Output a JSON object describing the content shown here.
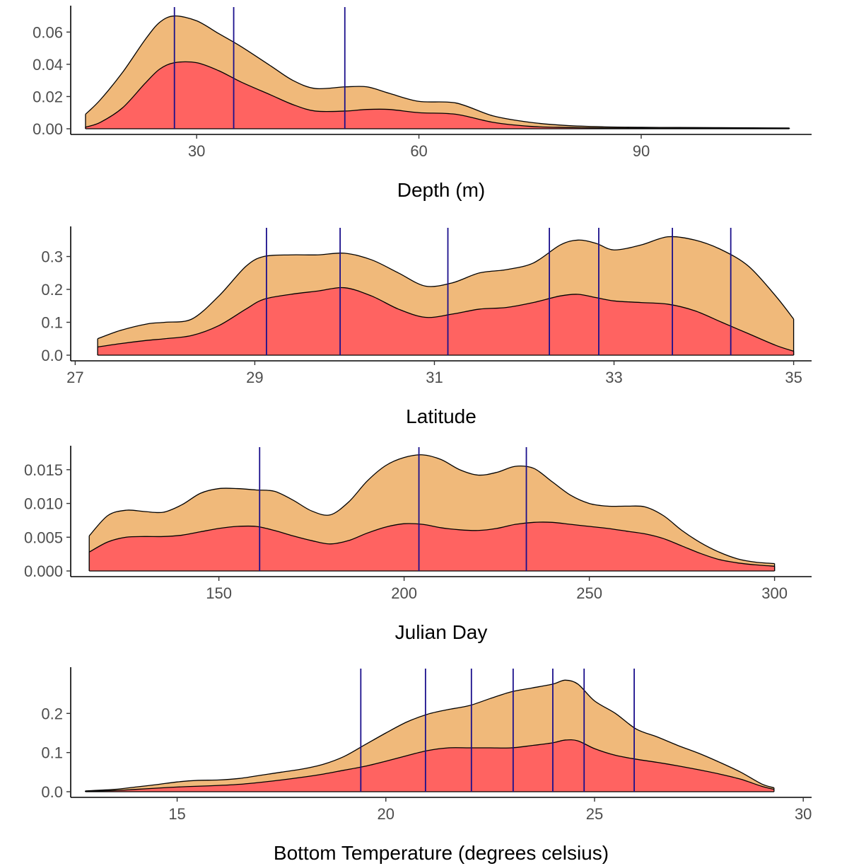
{
  "colors": {
    "outer_fill": "#F0B97A",
    "inner_fill": "#FF6361",
    "line": "#000000",
    "vline": "#1A0F8C"
  },
  "chart_data": [
    {
      "type": "area",
      "xlabel": "Depth (m)",
      "ylabel": "",
      "xlim": [
        13,
        113
      ],
      "ylim": [
        0,
        0.072
      ],
      "x_ticks": [
        30,
        60,
        90
      ],
      "x_tick_labels": [
        "30",
        "60",
        "90"
      ],
      "y_ticks": [
        0.0,
        0.02,
        0.04,
        0.06
      ],
      "y_tick_labels": [
        "0.00",
        "0.02",
        "0.04",
        "0.06"
      ],
      "series": [
        {
          "x": [
            15,
            17,
            20,
            23,
            25,
            27,
            30,
            33,
            36,
            40,
            43,
            46,
            50,
            53,
            56,
            60,
            65,
            70,
            75,
            80,
            85,
            90,
            95,
            100,
            105,
            110
          ],
          "values": [
            0.009,
            0.018,
            0.035,
            0.055,
            0.066,
            0.07,
            0.067,
            0.059,
            0.051,
            0.039,
            0.03,
            0.025,
            0.026,
            0.026,
            0.022,
            0.017,
            0.016,
            0.008,
            0.004,
            0.002,
            0.0012,
            0.0009,
            0.0008,
            0.0007,
            0.0006,
            0.0005
          ]
        },
        {
          "x": [
            15,
            17,
            20,
            23,
            25,
            27,
            30,
            33,
            36,
            40,
            43,
            46,
            50,
            53,
            56,
            60,
            65,
            70,
            75,
            80,
            85,
            90,
            95,
            100,
            105,
            110
          ],
          "values": [
            0.001,
            0.004,
            0.013,
            0.028,
            0.037,
            0.041,
            0.041,
            0.036,
            0.029,
            0.021,
            0.015,
            0.011,
            0.011,
            0.012,
            0.012,
            0.01,
            0.009,
            0.004,
            0.0015,
            0.0008,
            0.0005,
            0.0004,
            0.0003,
            0.0003,
            0.0002,
            0.0002
          ]
        }
      ],
      "vlines": [
        27,
        35,
        50
      ]
    },
    {
      "type": "area",
      "xlabel": "Latitude",
      "ylabel": "",
      "xlim": [
        26.95,
        35.2
      ],
      "ylim": [
        0,
        0.37
      ],
      "x_ticks": [
        27,
        29,
        31,
        33,
        35
      ],
      "x_tick_labels": [
        "27",
        "29",
        "31",
        "33",
        "35"
      ],
      "y_ticks": [
        0.0,
        0.1,
        0.2,
        0.3
      ],
      "y_tick_labels": [
        "0.0",
        "0.1",
        "0.2",
        "0.3"
      ],
      "series": [
        {
          "x": [
            27.25,
            27.5,
            27.8,
            28.0,
            28.3,
            28.6,
            28.9,
            29.1,
            29.4,
            29.7,
            30.0,
            30.3,
            30.6,
            30.9,
            31.2,
            31.5,
            31.8,
            32.1,
            32.4,
            32.6,
            32.8,
            33.0,
            33.3,
            33.6,
            33.9,
            34.2,
            34.5,
            34.8,
            35.0
          ],
          "values": [
            0.05,
            0.075,
            0.095,
            0.1,
            0.11,
            0.18,
            0.27,
            0.3,
            0.305,
            0.305,
            0.31,
            0.29,
            0.25,
            0.21,
            0.22,
            0.25,
            0.26,
            0.28,
            0.335,
            0.35,
            0.34,
            0.32,
            0.335,
            0.36,
            0.35,
            0.32,
            0.27,
            0.18,
            0.11
          ]
        },
        {
          "x": [
            27.25,
            27.5,
            27.8,
            28.0,
            28.3,
            28.6,
            28.9,
            29.1,
            29.4,
            29.7,
            30.0,
            30.3,
            30.6,
            30.9,
            31.2,
            31.5,
            31.8,
            32.1,
            32.4,
            32.6,
            32.8,
            33.0,
            33.3,
            33.6,
            33.9,
            34.2,
            34.5,
            34.8,
            35.0
          ],
          "values": [
            0.025,
            0.035,
            0.045,
            0.05,
            0.06,
            0.09,
            0.14,
            0.17,
            0.185,
            0.195,
            0.205,
            0.18,
            0.14,
            0.115,
            0.125,
            0.14,
            0.145,
            0.16,
            0.18,
            0.185,
            0.175,
            0.165,
            0.16,
            0.155,
            0.135,
            0.1,
            0.065,
            0.03,
            0.012
          ]
        }
      ],
      "vlines": [
        29.13,
        29.95,
        31.15,
        32.28,
        32.83,
        33.65,
        34.3
      ]
    },
    {
      "type": "area",
      "xlabel": "Julian Day",
      "ylabel": "",
      "xlim": [
        110,
        310
      ],
      "ylim": [
        0,
        0.0175
      ],
      "x_ticks": [
        150,
        200,
        250,
        300
      ],
      "x_tick_labels": [
        "150",
        "200",
        "250",
        "300"
      ],
      "y_ticks": [
        0.0,
        0.005,
        0.01,
        0.015
      ],
      "y_tick_labels": [
        "0.000",
        "0.005",
        "0.010",
        "0.015"
      ],
      "series": [
        {
          "x": [
            115,
            120,
            125,
            130,
            135,
            140,
            145,
            150,
            155,
            160,
            165,
            170,
            175,
            180,
            185,
            190,
            195,
            200,
            205,
            210,
            215,
            220,
            225,
            230,
            235,
            240,
            245,
            250,
            255,
            260,
            265,
            270,
            275,
            280,
            285,
            290,
            295,
            300
          ],
          "values": [
            0.0052,
            0.0082,
            0.009,
            0.0088,
            0.0087,
            0.0098,
            0.0115,
            0.0122,
            0.0122,
            0.012,
            0.0118,
            0.0105,
            0.0089,
            0.0083,
            0.0102,
            0.0133,
            0.0156,
            0.0168,
            0.0172,
            0.0165,
            0.015,
            0.0142,
            0.0146,
            0.0155,
            0.0152,
            0.0132,
            0.0112,
            0.01,
            0.0096,
            0.0096,
            0.0095,
            0.0082,
            0.006,
            0.0042,
            0.0028,
            0.0018,
            0.0013,
            0.0011
          ]
        },
        {
          "x": [
            115,
            120,
            125,
            130,
            135,
            140,
            145,
            150,
            155,
            160,
            165,
            170,
            175,
            180,
            185,
            190,
            195,
            200,
            205,
            210,
            215,
            220,
            225,
            230,
            235,
            240,
            245,
            250,
            255,
            260,
            265,
            270,
            275,
            280,
            285,
            290,
            295,
            300
          ],
          "values": [
            0.0028,
            0.0043,
            0.005,
            0.0051,
            0.0051,
            0.0053,
            0.0058,
            0.0063,
            0.0066,
            0.0066,
            0.006,
            0.0052,
            0.0045,
            0.004,
            0.0045,
            0.0056,
            0.0065,
            0.007,
            0.0069,
            0.0064,
            0.0061,
            0.006,
            0.0063,
            0.0069,
            0.0072,
            0.0072,
            0.0069,
            0.0066,
            0.0063,
            0.0059,
            0.0055,
            0.0048,
            0.0037,
            0.0026,
            0.0017,
            0.0012,
            0.0009,
            0.0007
          ]
        }
      ],
      "vlines": [
        161,
        204,
        233
      ]
    },
    {
      "type": "area",
      "xlabel": "Bottom Temperature (degrees celsius)",
      "ylabel": "",
      "xlim": [
        12.45,
        30.2
      ],
      "ylim": [
        0,
        0.3
      ],
      "x_ticks": [
        15,
        20,
        25,
        30
      ],
      "x_tick_labels": [
        "15",
        "20",
        "25",
        "30"
      ],
      "y_ticks": [
        0.0,
        0.1,
        0.2
      ],
      "y_tick_labels": [
        "0.0",
        "0.1",
        "0.2"
      ],
      "series": [
        {
          "x": [
            12.8,
            13.5,
            14.0,
            14.5,
            15.0,
            15.5,
            16.0,
            16.5,
            17.0,
            17.5,
            18.0,
            18.5,
            19.0,
            19.5,
            20.0,
            20.5,
            21.0,
            21.5,
            22.0,
            22.5,
            23.0,
            23.5,
            24.0,
            24.3,
            24.6,
            25.0,
            25.5,
            26.0,
            26.5,
            27.0,
            27.5,
            28.0,
            28.5,
            29.0,
            29.3
          ],
          "values": [
            0.002,
            0.006,
            0.012,
            0.018,
            0.025,
            0.029,
            0.03,
            0.034,
            0.042,
            0.05,
            0.058,
            0.07,
            0.09,
            0.12,
            0.15,
            0.178,
            0.198,
            0.21,
            0.22,
            0.238,
            0.255,
            0.265,
            0.275,
            0.285,
            0.275,
            0.232,
            0.2,
            0.16,
            0.14,
            0.118,
            0.098,
            0.075,
            0.05,
            0.02,
            0.01
          ]
        },
        {
          "x": [
            12.8,
            13.5,
            14.0,
            14.5,
            15.0,
            15.5,
            16.0,
            16.5,
            17.0,
            17.5,
            18.0,
            18.5,
            19.0,
            19.5,
            20.0,
            20.5,
            21.0,
            21.5,
            22.0,
            22.5,
            23.0,
            23.5,
            24.0,
            24.3,
            24.6,
            25.0,
            25.5,
            26.0,
            26.5,
            27.0,
            27.5,
            28.0,
            28.5,
            29.0,
            29.3
          ],
          "values": [
            0.001,
            0.003,
            0.006,
            0.009,
            0.012,
            0.014,
            0.016,
            0.019,
            0.024,
            0.03,
            0.037,
            0.045,
            0.055,
            0.065,
            0.078,
            0.092,
            0.105,
            0.112,
            0.112,
            0.112,
            0.112,
            0.118,
            0.125,
            0.132,
            0.13,
            0.11,
            0.093,
            0.083,
            0.075,
            0.066,
            0.056,
            0.045,
            0.032,
            0.014,
            0.006
          ]
        }
      ],
      "vlines": [
        19.4,
        20.95,
        22.05,
        23.05,
        24.0,
        24.75,
        25.95
      ]
    }
  ]
}
